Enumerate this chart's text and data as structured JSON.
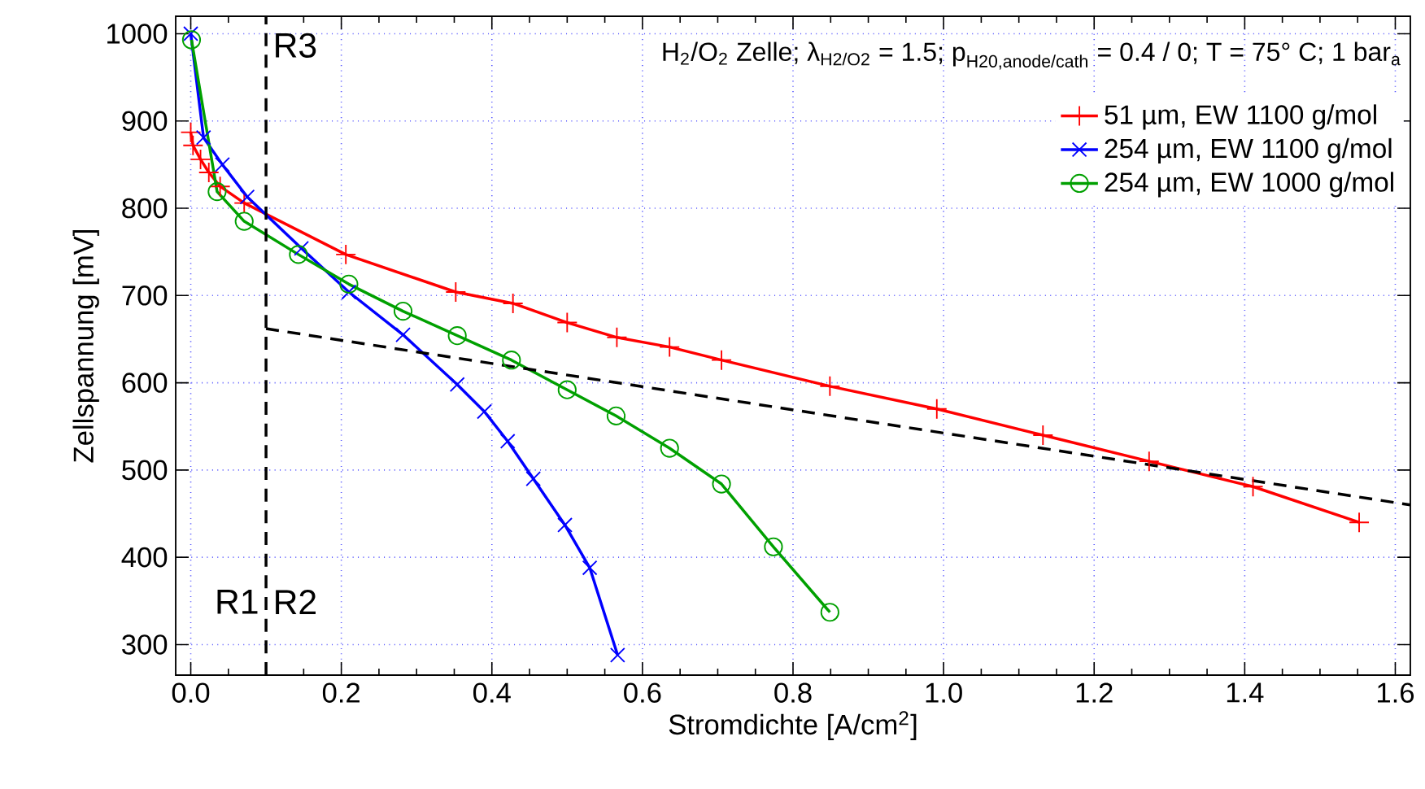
{
  "chart_data": {
    "type": "line",
    "title": "\\text{H}_{\\text{2}}\\text{/O}_{\\text{2}}\\text{ Zelle; λ}_{\\text{H2/O2}}\\text{ = 1.5; p}_{\\text{H20,anode/cath}}\\text{ = 0.4 / 0; T = 75° C; 1 bar}_{\\text{a}}",
    "xlabel": "Stromdichte [A/cm$^{2}$]",
    "ylabel": "Zellspannung [mV]",
    "xlim": [
      -0.02,
      1.62
    ],
    "ylim": [
      265,
      1020
    ],
    "xticks": [
      {
        "value": 0,
        "label": "0.0"
      },
      {
        "value": 0.2,
        "label": "0.2"
      },
      {
        "value": 0.4,
        "label": "0.4"
      },
      {
        "value": 0.6,
        "label": "0.6"
      },
      {
        "value": 0.8,
        "label": "0.8"
      },
      {
        "value": 1.0,
        "label": "1.0"
      },
      {
        "value": 1.2,
        "label": "1.2"
      },
      {
        "value": 1.4,
        "label": "1.4"
      },
      {
        "value": 1.6,
        "label": "1.6"
      }
    ],
    "yticks": [
      300,
      400,
      500,
      600,
      700,
      800,
      900,
      1000
    ],
    "grid": true,
    "legend": "top right",
    "series": [
      {
        "name": "51 µm, EW 1100 g/mol",
        "color": "#ff0000",
        "marker": "plus",
        "x": [
          0.0,
          0.003,
          0.013,
          0.024,
          0.039,
          0.071,
          0.206,
          0.352,
          0.428,
          0.5,
          0.566,
          0.636,
          0.705,
          0.849,
          0.991,
          1.132,
          1.273,
          1.411,
          1.552
        ],
        "values": [
          887,
          872,
          856,
          841,
          825,
          806,
          747,
          704,
          691,
          669,
          652,
          641,
          626,
          596,
          570,
          540,
          510,
          481,
          440
        ]
      },
      {
        "name": "254 µm, EW 1100 g/mol",
        "color": "#0000ff",
        "marker": "cross",
        "x": [
          0.0,
          0.017,
          0.042,
          0.075,
          0.147,
          0.21,
          0.282,
          0.354,
          0.39,
          0.421,
          0.455,
          0.497,
          0.53,
          0.567
        ],
        "values": [
          1000,
          881,
          850,
          813,
          754,
          704,
          655,
          598,
          567,
          533,
          490,
          437,
          388,
          288
        ]
      },
      {
        "name": "254 µm, EW 1000 g/mol",
        "color": "#00a000",
        "marker": "circle",
        "x": [
          0.001,
          0.035,
          0.071,
          0.143,
          0.21,
          0.282,
          0.354,
          0.426,
          0.5,
          0.565,
          0.636,
          0.705,
          0.774,
          0.849
        ],
        "values": [
          993,
          819,
          785,
          747,
          713,
          682,
          654,
          626,
          592,
          562,
          525,
          484,
          412,
          337
        ]
      },
      {
        "color": "#000000",
        "line_style": "dashed",
        "marker": "none",
        "x": [
          0.1,
          1.62
        ],
        "values": [
          662,
          460
        ]
      }
    ],
    "ref_lines": [
      {
        "axis": "x",
        "value": 0.1,
        "color": "#000000",
        "line_style": "dashed"
      }
    ],
    "annotations": [
      "R1",
      "R2",
      "R3"
    ]
  }
}
